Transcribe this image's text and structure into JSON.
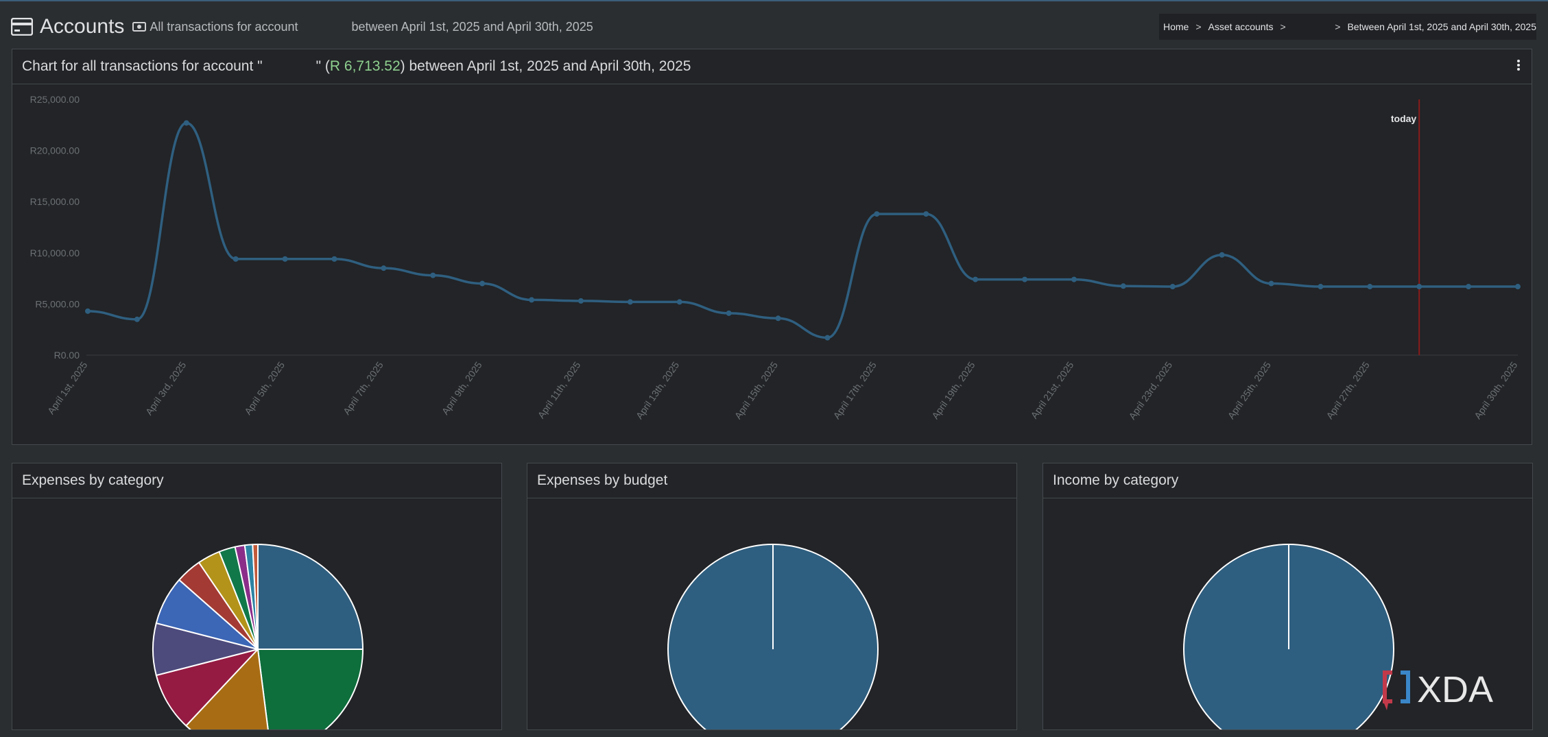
{
  "header": {
    "title": "Accounts",
    "subtitle": "All transactions for account",
    "subtitle_range": "between April 1st, 2025 and April 30th, 2025"
  },
  "breadcrumb": {
    "home": "Home",
    "asset_accounts": "Asset accounts",
    "current": "Between April 1st, 2025 and April 30th, 2025",
    "separator": ">"
  },
  "main_chart_box": {
    "title_prefix": "Chart for all transactions for account \"",
    "title_mid": "\" (",
    "amount": "R 6,713.52",
    "title_suffix": ") between April 1st, 2025 and April 30th, 2025"
  },
  "chart_data": [
    {
      "type": "line",
      "x": [
        "April 1st, 2025",
        "April 2nd, 2025",
        "April 3rd, 2025",
        "April 4th, 2025",
        "April 5th, 2025",
        "April 6th, 2025",
        "April 7th, 2025",
        "April 8th, 2025",
        "April 9th, 2025",
        "April 10th, 2025",
        "April 11th, 2025",
        "April 12th, 2025",
        "April 13th, 2025",
        "April 14th, 2025",
        "April 15th, 2025",
        "April 16th, 2025",
        "April 17th, 2025",
        "April 18th, 2025",
        "April 19th, 2025",
        "April 20th, 2025",
        "April 21st, 2025",
        "April 22nd, 2025",
        "April 23rd, 2025",
        "April 24th, 2025",
        "April 25th, 2025",
        "April 26th, 2025",
        "April 27th, 2025",
        "April 28th, 2025",
        "April 29th, 2025",
        "April 30th, 2025"
      ],
      "tick_labels": [
        "April 1st, 2025",
        "April 3rd, 2025",
        "April 5th, 2025",
        "April 7th, 2025",
        "April 9th, 2025",
        "April 11th, 2025",
        "April 13th, 2025",
        "April 15th, 2025",
        "April 17th, 2025",
        "April 19th, 2025",
        "April 21st, 2025",
        "April 23rd, 2025",
        "April 25th, 2025",
        "April 27th, 2025",
        "April 30th, 2025"
      ],
      "series": [
        {
          "values": [
            4300,
            3500,
            22700,
            9400,
            9400,
            9400,
            8500,
            7800,
            7000,
            5400,
            5300,
            5200,
            5200,
            4100,
            3600,
            1700,
            13800,
            13800,
            7400,
            7400,
            7400,
            6750,
            6700,
            9800,
            7000,
            6700,
            6700,
            6700,
            6700,
            6700
          ]
        }
      ],
      "y_ticks": [
        "R0.00",
        "R5,000.00",
        "R10,000.00",
        "R15,000.00",
        "R20,000.00",
        "R25,000.00"
      ],
      "ylim": [
        0,
        25000
      ],
      "marker": {
        "label": "today",
        "x": "April 28th, 2025",
        "color": "#8b1a1a"
      },
      "line_color": "#2f5f80",
      "grid": false
    },
    {
      "type": "pie",
      "title": "Expenses by category",
      "values": [
        25.0,
        23.0,
        14.0,
        9.0,
        8.0,
        7.5,
        4.0,
        3.5,
        2.5,
        1.5,
        1.2,
        0.8
      ],
      "colors": [
        "#2f5f80",
        "#0e6e3c",
        "#a86d14",
        "#951b43",
        "#4d4a7c",
        "#3c66b6",
        "#a33b34",
        "#b3931a",
        "#11784a",
        "#8b2e8a",
        "#2d83a3",
        "#c25a3a"
      ]
    },
    {
      "type": "pie",
      "title": "Expenses by budget",
      "values": [
        100
      ],
      "colors": [
        "#2f5f80"
      ]
    },
    {
      "type": "pie",
      "title": "Income by category",
      "values": [
        100
      ],
      "colors": [
        "#2f5f80"
      ]
    }
  ],
  "watermark": "XDA"
}
